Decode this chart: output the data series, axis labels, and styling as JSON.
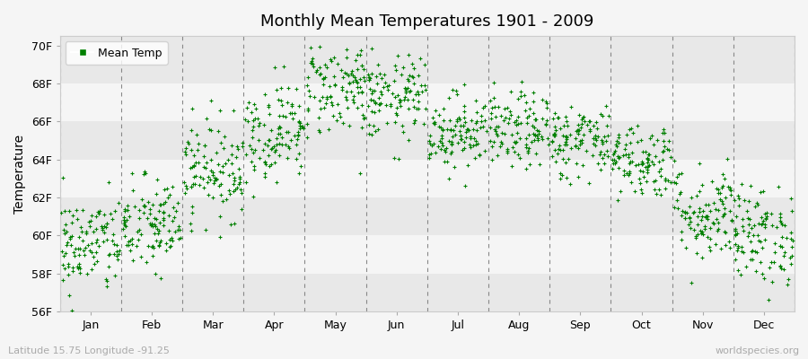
{
  "title": "Monthly Mean Temperatures 1901 - 2009",
  "ylabel": "Temperature",
  "ylim": [
    56,
    70.5
  ],
  "yticks": [
    56,
    58,
    60,
    62,
    64,
    66,
    68,
    70
  ],
  "ytick_labels": [
    "56F",
    "58F",
    "60F",
    "62F",
    "64F",
    "66F",
    "68F",
    "70F"
  ],
  "months": [
    "Jan",
    "Feb",
    "Mar",
    "Apr",
    "May",
    "Jun",
    "Jul",
    "Aug",
    "Sep",
    "Oct",
    "Nov",
    "Dec"
  ],
  "dot_color": "#008000",
  "bg_color": "#f5f5f5",
  "band_dark": "#e8e8e8",
  "band_light": "#f5f5f5",
  "legend_label": "Mean Temp",
  "footer_left": "Latitude 15.75 Longitude -91.25",
  "footer_right": "worldspecies.org",
  "n_years": 109,
  "seed": 42,
  "monthly_mean_temps_F": [
    59.5,
    60.5,
    63.5,
    65.5,
    67.8,
    67.2,
    65.5,
    65.5,
    65.0,
    64.0,
    61.2,
    60.0
  ],
  "monthly_std_F": [
    1.3,
    1.3,
    1.3,
    1.3,
    1.3,
    1.1,
    1.0,
    1.0,
    1.0,
    1.0,
    1.3,
    1.3
  ]
}
